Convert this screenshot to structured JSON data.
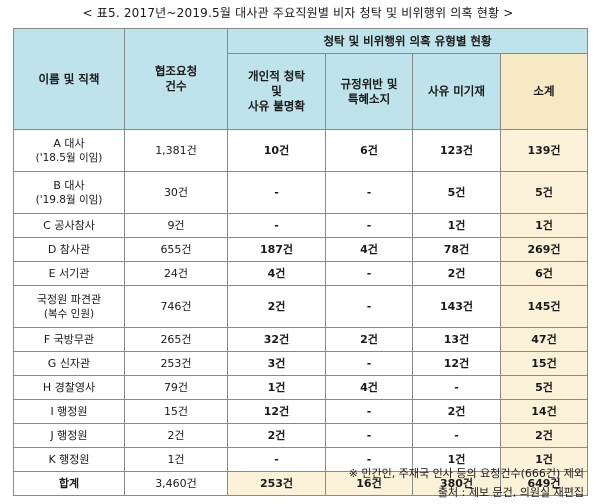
{
  "title": "< 표5. 2017년~2019.5월 대사관 주요직원별 비자 청탁 및 비위행위 의혹 현황 >",
  "headers": {
    "name": "이름 및 직책",
    "requests": "협조요청\n건수",
    "group": "청탁 및 비위행위 의혹 유형별 현황",
    "personal": "개인적 청탁\n및\n사유 불명확",
    "violation": "규정위반 및\n특혜소지",
    "no_reason": "사유 미기재",
    "subtotal": "소계"
  },
  "rows": [
    {
      "name": "A 대사",
      "sub": "('18.5월 이임)",
      "requests": "1,381건",
      "personal": "10건",
      "violation": "6건",
      "no_reason": "123건",
      "subtotal": "139건"
    },
    {
      "name": "B 대사",
      "sub": "('19.8월 이임)",
      "requests": "30건",
      "personal": "-",
      "violation": "-",
      "no_reason": "5건",
      "subtotal": "5건"
    },
    {
      "name": "C 공사참사",
      "requests": "9건",
      "personal": "-",
      "violation": "-",
      "no_reason": "1건",
      "subtotal": "1건"
    },
    {
      "name": "D 참사관",
      "requests": "655건",
      "personal": "187건",
      "violation": "4건",
      "no_reason": "78건",
      "subtotal": "269건"
    },
    {
      "name": "E 서기관",
      "requests": "24건",
      "personal": "4건",
      "violation": "-",
      "no_reason": "2건",
      "subtotal": "6건"
    },
    {
      "name": "국정원 파견관",
      "sub": "(복수 인원)",
      "requests": "746건",
      "personal": "2건",
      "violation": "-",
      "no_reason": "143건",
      "subtotal": "145건"
    },
    {
      "name": "F 국방무관",
      "requests": "265건",
      "personal": "32건",
      "violation": "2건",
      "no_reason": "13건",
      "subtotal": "47건"
    },
    {
      "name": "G 신자관",
      "requests": "253건",
      "personal": "3건",
      "violation": "-",
      "no_reason": "12건",
      "subtotal": "15건"
    },
    {
      "name": "H 경찰영사",
      "requests": "79건",
      "personal": "1건",
      "violation": "4건",
      "no_reason": "-",
      "subtotal": "5건"
    },
    {
      "name": "I 행정원",
      "requests": "15건",
      "personal": "12건",
      "violation": "-",
      "no_reason": "2건",
      "subtotal": "14건"
    },
    {
      "name": "J 행정원",
      "requests": "2건",
      "personal": "2건",
      "violation": "-",
      "no_reason": "-",
      "subtotal": "2건"
    },
    {
      "name": "K 행정원",
      "requests": "1건",
      "personal": "-",
      "violation": "-",
      "no_reason": "1건",
      "subtotal": "1건"
    }
  ],
  "total": {
    "name": "합계",
    "requests": "3,460건",
    "personal": "253건",
    "violation": "16건",
    "no_reason": "380건",
    "subtotal": "649건"
  },
  "notes": [
    "※ 민간인, 주재국 인사 등의 요청건수(666건) 제외",
    "출처 : 제보 문건, 의원실 재편집"
  ]
}
